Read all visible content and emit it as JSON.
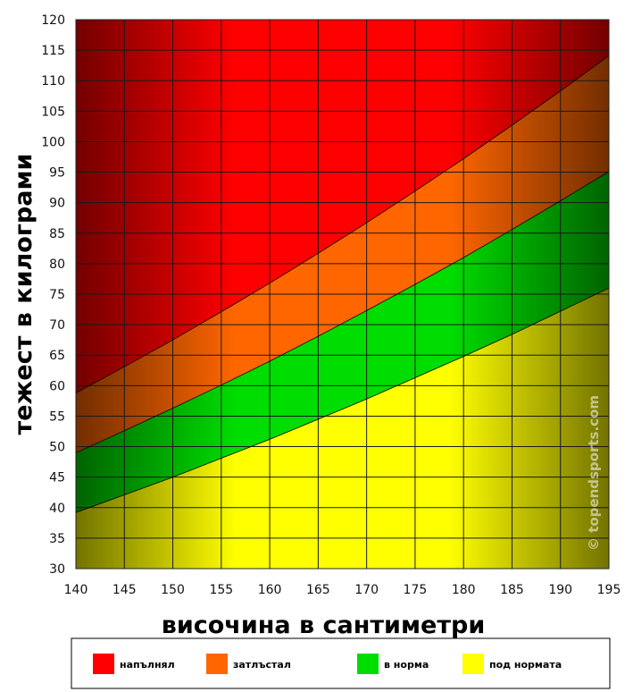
{
  "chart_data": {
    "type": "area",
    "xlabel": "височина в сантиметри",
    "ylabel": "тежест в килограми",
    "xlim": [
      140,
      195
    ],
    "ylim": [
      30,
      120
    ],
    "x_ticks": [
      140,
      145,
      150,
      155,
      160,
      165,
      170,
      175,
      180,
      185,
      190,
      195
    ],
    "y_ticks": [
      30,
      35,
      40,
      45,
      50,
      55,
      60,
      65,
      70,
      75,
      80,
      85,
      90,
      95,
      100,
      105,
      110,
      115,
      120
    ],
    "grid": true,
    "x": [
      140,
      145,
      150,
      155,
      160,
      165,
      170,
      175,
      180,
      185,
      190,
      195
    ],
    "series": [
      {
        "name": "под нормата",
        "color": "#ffff00",
        "lower": [
          30,
          30,
          30,
          30,
          30,
          30,
          30,
          30,
          30,
          30,
          30,
          30
        ],
        "upper": [
          39.2,
          42.1,
          45.0,
          48.1,
          51.2,
          54.5,
          57.8,
          61.3,
          64.8,
          68.4,
          72.2,
          76.0
        ]
      },
      {
        "name": "в норма",
        "color": "#00dd00",
        "lower": [
          39.2,
          42.1,
          45.0,
          48.1,
          51.2,
          54.5,
          57.8,
          61.3,
          64.8,
          68.4,
          72.2,
          76.0
        ],
        "upper": [
          49.0,
          52.6,
          56.3,
          60.1,
          64.0,
          68.1,
          72.3,
          76.6,
          81.0,
          85.6,
          90.3,
          95.1
        ]
      },
      {
        "name": "затлъстал",
        "color": "#ff6600",
        "lower": [
          49.0,
          52.6,
          56.3,
          60.1,
          64.0,
          68.1,
          72.3,
          76.6,
          81.0,
          85.6,
          90.3,
          95.1
        ],
        "upper": [
          58.8,
          63.1,
          67.5,
          72.1,
          76.8,
          81.7,
          86.7,
          91.9,
          97.2,
          102.7,
          108.3,
          114.1
        ]
      },
      {
        "name": "напълнял",
        "color": "#ff0000",
        "lower": [
          58.8,
          63.1,
          67.5,
          72.1,
          76.8,
          81.7,
          86.7,
          91.9,
          97.2,
          102.7,
          108.3,
          114.1
        ],
        "upper": [
          120,
          120,
          120,
          120,
          120,
          120,
          120,
          120,
          120,
          120,
          120,
          120
        ]
      }
    ],
    "legend": {
      "placement": "bottom",
      "entries": [
        {
          "label": "напълнял",
          "color": "#ff0000"
        },
        {
          "label": "затлъстал",
          "color": "#ff6600"
        },
        {
          "label": "в норма",
          "color": "#00dd00"
        },
        {
          "label": "под нормата",
          "color": "#ffff00"
        }
      ]
    },
    "watermark": "© topendsports.com"
  }
}
